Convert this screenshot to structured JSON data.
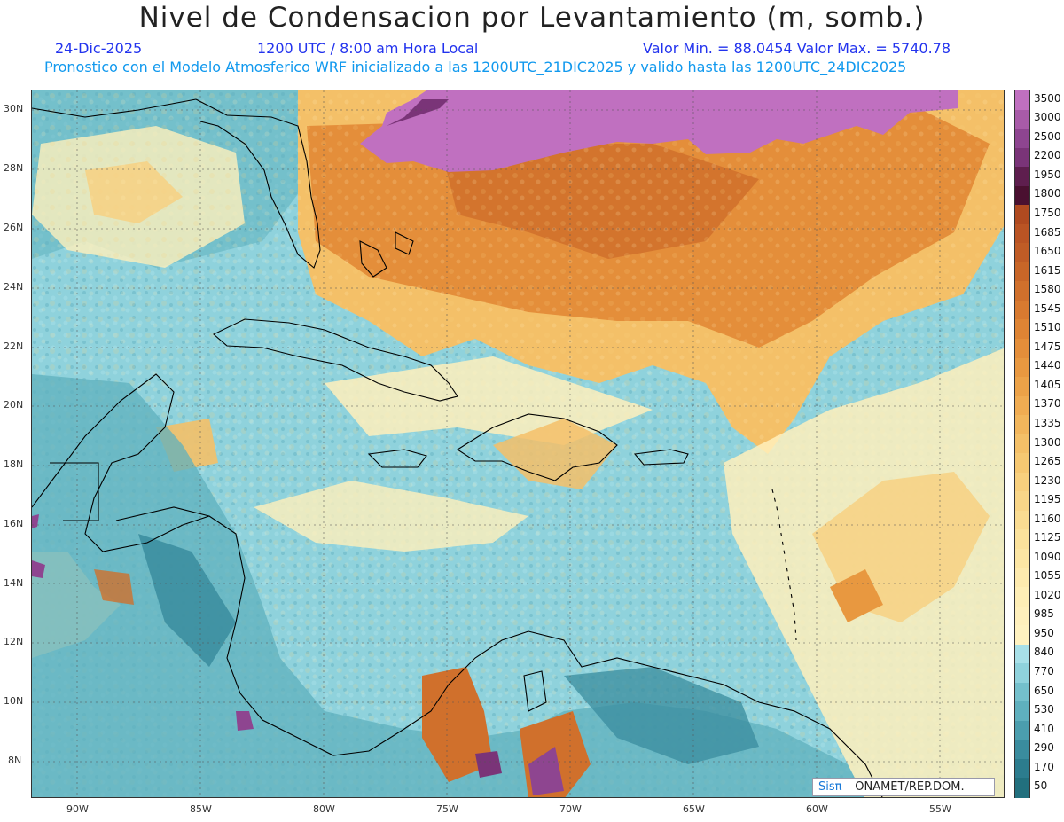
{
  "header": {
    "title": "Nivel de Condensacion por Levantamiento (m, somb.)",
    "date": "24-Dic-2025",
    "time": "1200 UTC / 8:00 am Hora Local",
    "range": "Valor Min. = 88.0454   Valor Max. = 5740.78",
    "model_note": "Pronostico con el Modelo Atmosferico WRF inicializado a las 1200UTC_21DIC2025 y valido hasta las  1200UTC_24DIC2025"
  },
  "map": {
    "lat_ticks": [
      "30N",
      "28N",
      "26N",
      "24N",
      "22N",
      "20N",
      "18N",
      "16N",
      "14N",
      "12N",
      "10N",
      "8N"
    ],
    "lon_ticks": [
      "90W",
      "85W",
      "80W",
      "75W",
      "70W",
      "65W",
      "60W",
      "55W"
    ]
  },
  "colorbar": {
    "labels": [
      "3500",
      "3000",
      "2500",
      "2200",
      "1950",
      "1800",
      "1750",
      "1685",
      "1650",
      "1615",
      "1580",
      "1545",
      "1510",
      "1475",
      "1440",
      "1405",
      "1370",
      "1335",
      "1300",
      "1265",
      "1230",
      "1195",
      "1160",
      "1125",
      "1090",
      "1055",
      "1020",
      "985",
      "950",
      "840",
      "770",
      "650",
      "530",
      "410",
      "290",
      "170",
      "50"
    ],
    "colors": [
      "#c070c0",
      "#a85ba8",
      "#8e4590",
      "#7a3478",
      "#5e1e4e",
      "#4a1030",
      "#b04a20",
      "#ba5424",
      "#c05c26",
      "#c86628",
      "#d0702c",
      "#d87a30",
      "#de8434",
      "#e48e3a",
      "#e89840",
      "#eca248",
      "#f0ac52",
      "#f2b65c",
      "#f4c068",
      "#f6c872",
      "#f8d07e",
      "#f9d688",
      "#fadc92",
      "#fbe29c",
      "#fce6a4",
      "#fdeaae",
      "#feeeb6",
      "#fff0bc",
      "#fff2c0",
      "#a8e0e8",
      "#8fd2dc",
      "#74c0cc",
      "#5fb0be",
      "#4b9eae",
      "#3a8c9e",
      "#2c7c8e",
      "#22707e"
    ]
  },
  "credit": {
    "logo": "Sisπ",
    "text": " – ONAMET/REP.DOM."
  }
}
